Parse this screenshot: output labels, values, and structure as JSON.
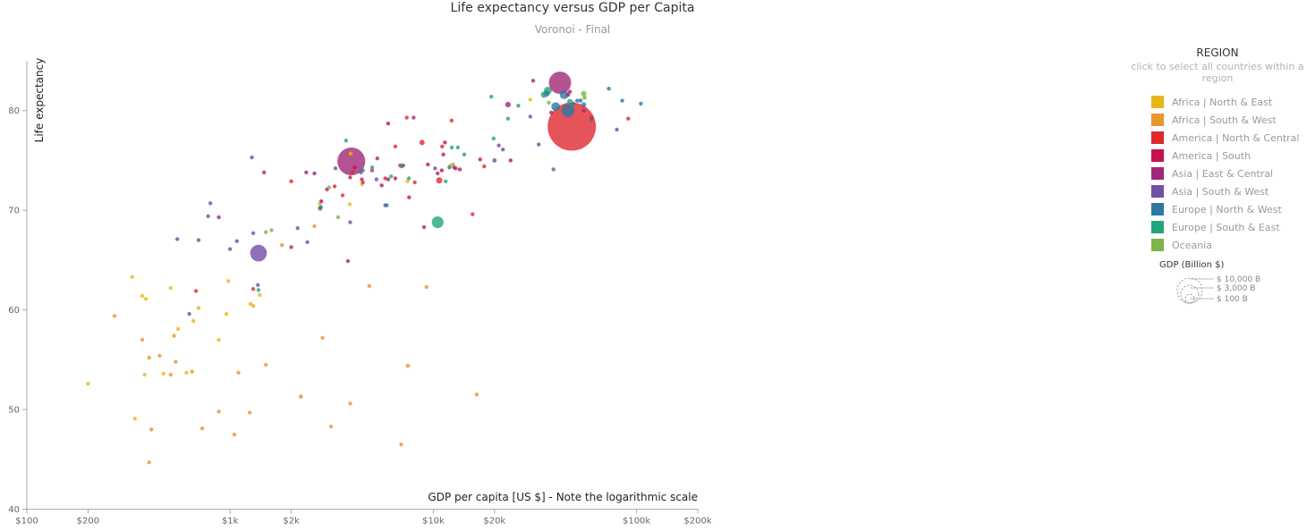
{
  "chart_data": {
    "type": "scatter",
    "title": "Life expectancy versus GDP per Capita",
    "subtitle": "Voronoi - Final",
    "xlabel": "GDP per capita [US $] - Note the logarithmic scale",
    "ylabel": "Life expectancy",
    "x_scale": "log",
    "xlim": [
      100,
      200000
    ],
    "ylim": [
      40,
      85
    ],
    "x_ticks": [
      {
        "value": 100,
        "label": "$100"
      },
      {
        "value": 200,
        "label": "$200"
      },
      {
        "value": 1000,
        "label": "$1k"
      },
      {
        "value": 2000,
        "label": "$2k"
      },
      {
        "value": 10000,
        "label": "$10k"
      },
      {
        "value": 20000,
        "label": "$20k"
      },
      {
        "value": 100000,
        "label": "$100k"
      },
      {
        "value": 200000,
        "label": "$200k"
      }
    ],
    "y_ticks": [
      {
        "value": 40,
        "label": "40"
      },
      {
        "value": 50,
        "label": "50"
      },
      {
        "value": 60,
        "label": "60"
      },
      {
        "value": 70,
        "label": "70"
      },
      {
        "value": 80,
        "label": "80"
      }
    ],
    "grid": false,
    "legend": {
      "title": "REGION",
      "hint": "click to select all countries within a region",
      "position": "right"
    },
    "size_legend": {
      "title": "GDP (Billion $)",
      "entries": [
        {
          "value": 10000,
          "label": "$ 10,000 B"
        },
        {
          "value": 3000,
          "label": "$ 3,000 B"
        },
        {
          "value": 100,
          "label": "$ 100 B"
        }
      ]
    },
    "series": [
      {
        "name": "Africa | North & East",
        "color": "#E8B51B",
        "points": [
          [
            200,
            52.6,
            30
          ],
          [
            330,
            63.3,
            30
          ],
          [
            340,
            49.1,
            30
          ],
          [
            370,
            61.4,
            30
          ],
          [
            380,
            53.5,
            30
          ],
          [
            385,
            61.1,
            30
          ],
          [
            470,
            53.6,
            30
          ],
          [
            510,
            62.2,
            30
          ],
          [
            555,
            58.1,
            30
          ],
          [
            610,
            53.7,
            30
          ],
          [
            660,
            58.9,
            30
          ],
          [
            700,
            60.2,
            30
          ],
          [
            960,
            59.6,
            40
          ],
          [
            980,
            62.9,
            40
          ],
          [
            1260,
            60.6,
            40
          ],
          [
            1400,
            61.5,
            40
          ],
          [
            2760,
            70.6,
            60
          ],
          [
            2780,
            70.1,
            40
          ],
          [
            3880,
            70.6,
            40
          ],
          [
            3920,
            75.7,
            40
          ],
          [
            4460,
            72.6,
            40
          ],
          [
            7460,
            72.9,
            40
          ],
          [
            12130,
            74.5,
            40
          ],
          [
            30000,
            81.1,
            40
          ],
          [
            1300,
            60.4,
            40
          ],
          [
            880,
            57.0,
            30
          ]
        ]
      },
      {
        "name": "Africa | South & West",
        "color": "#E8962E",
        "points": [
          [
            270,
            59.4,
            30
          ],
          [
            370,
            57.0,
            30
          ],
          [
            400,
            55.2,
            30
          ],
          [
            410,
            48.0,
            30
          ],
          [
            400,
            44.7,
            30
          ],
          [
            450,
            55.4,
            30
          ],
          [
            510,
            53.5,
            30
          ],
          [
            530,
            57.4,
            30
          ],
          [
            540,
            54.8,
            30
          ],
          [
            650,
            53.8,
            30
          ],
          [
            730,
            48.1,
            30
          ],
          [
            880,
            49.8,
            30
          ],
          [
            1050,
            47.5,
            30
          ],
          [
            1100,
            53.7,
            30
          ],
          [
            1250,
            49.7,
            30
          ],
          [
            1500,
            54.5,
            30
          ],
          [
            2230,
            51.3,
            120
          ],
          [
            2850,
            57.2,
            30
          ],
          [
            3140,
            48.3,
            30
          ],
          [
            3900,
            50.6,
            60
          ],
          [
            4840,
            62.4,
            30
          ],
          [
            6950,
            46.5,
            30
          ],
          [
            7500,
            54.4,
            120
          ],
          [
            9250,
            62.3,
            30
          ],
          [
            16350,
            51.5,
            30
          ],
          [
            1800,
            66.5,
            30
          ],
          [
            2600,
            68.4,
            30
          ]
        ]
      },
      {
        "name": "America | North & Central",
        "color": "#E0282E",
        "points": [
          [
            680,
            61.9,
            30
          ],
          [
            1300,
            62.1,
            30
          ],
          [
            2000,
            72.9,
            30
          ],
          [
            3270,
            72.4,
            30
          ],
          [
            3580,
            71.5,
            30
          ],
          [
            4000,
            73.8,
            30
          ],
          [
            4500,
            72.8,
            30
          ],
          [
            5000,
            74.0,
            30
          ],
          [
            5800,
            73.2,
            30
          ],
          [
            6500,
            76.4,
            30
          ],
          [
            7400,
            79.3,
            30
          ],
          [
            8100,
            72.8,
            30
          ],
          [
            8800,
            76.8,
            180
          ],
          [
            10700,
            73.0,
            250
          ],
          [
            11050,
            76.4,
            90
          ],
          [
            12300,
            79.0,
            60
          ],
          [
            15600,
            69.6,
            30
          ],
          [
            17800,
            74.4,
            30
          ],
          [
            48000,
            78.4,
            15000
          ],
          [
            60000,
            79.3,
            30
          ],
          [
            91000,
            79.2,
            30
          ]
        ]
      },
      {
        "name": "America | South",
        "color": "#C4124D",
        "points": [
          [
            2810,
            70.9,
            30
          ],
          [
            3000,
            72.1,
            30
          ],
          [
            4100,
            74.3,
            60
          ],
          [
            5570,
            72.5,
            30
          ],
          [
            6000,
            78.7,
            60
          ],
          [
            6500,
            73.2,
            60
          ],
          [
            7100,
            74.5,
            30
          ],
          [
            7600,
            71.3,
            30
          ],
          [
            9400,
            74.6,
            60
          ],
          [
            11000,
            74.0,
            60
          ],
          [
            11400,
            76.8,
            30
          ],
          [
            12660,
            74.3,
            60
          ],
          [
            13500,
            74.1,
            60
          ],
          [
            17000,
            75.1,
            30
          ],
          [
            24000,
            75.0,
            30
          ],
          [
            47000,
            81.9,
            60
          ]
        ]
      },
      {
        "name": "Asia | East & Central",
        "color": "#A02876",
        "points": [
          [
            880,
            69.3,
            30
          ],
          [
            1470,
            73.8,
            30
          ],
          [
            2000,
            66.3,
            30
          ],
          [
            2370,
            73.8,
            30
          ],
          [
            2600,
            73.7,
            30
          ],
          [
            3800,
            64.9,
            30
          ],
          [
            3900,
            73.3,
            30
          ],
          [
            3950,
            74.9,
            5000
          ],
          [
            4450,
            73.1,
            60
          ],
          [
            5300,
            75.2,
            30
          ],
          [
            6000,
            73.1,
            30
          ],
          [
            6870,
            74.5,
            30
          ],
          [
            8000,
            79.3,
            30
          ],
          [
            9000,
            68.3,
            60
          ],
          [
            10500,
            73.7,
            30
          ],
          [
            11200,
            75.6,
            60
          ],
          [
            12900,
            74.2,
            60
          ],
          [
            23300,
            80.6,
            200
          ],
          [
            31000,
            83.0,
            60
          ],
          [
            42000,
            82.8,
            3200
          ],
          [
            46000,
            81.6,
            120
          ],
          [
            38000,
            79.8,
            60
          ],
          [
            55000,
            80.0,
            60
          ]
        ]
      },
      {
        "name": "Asia | South & West",
        "color": "#7150A2",
        "points": [
          [
            550,
            67.1,
            30
          ],
          [
            630,
            59.6,
            30
          ],
          [
            700,
            67.0,
            30
          ],
          [
            780,
            69.4,
            60
          ],
          [
            800,
            70.7,
            30
          ],
          [
            1000,
            66.1,
            60
          ],
          [
            1080,
            66.9,
            30
          ],
          [
            1280,
            75.3,
            60
          ],
          [
            1300,
            67.7,
            30
          ],
          [
            1380,
            65.7,
            1800
          ],
          [
            1370,
            62.5,
            30
          ],
          [
            2150,
            68.2,
            30
          ],
          [
            2400,
            66.8,
            30
          ],
          [
            3300,
            74.2,
            30
          ],
          [
            3900,
            68.8,
            30
          ],
          [
            4400,
            73.8,
            60
          ],
          [
            5250,
            73.1,
            60
          ],
          [
            5800,
            70.5,
            30
          ],
          [
            10200,
            74.2,
            60
          ],
          [
            20000,
            75.0,
            120
          ],
          [
            21000,
            76.5,
            30
          ],
          [
            30000,
            79.4,
            30
          ],
          [
            33000,
            76.6,
            60
          ],
          [
            39000,
            74.1,
            30
          ],
          [
            80000,
            78.1,
            60
          ],
          [
            22000,
            76.1,
            30
          ]
        ]
      },
      {
        "name": "Europe | North & West",
        "color": "#2E77A2",
        "points": [
          [
            4500,
            74.0,
            30
          ],
          [
            5900,
            70.5,
            30
          ],
          [
            12000,
            74.3,
            30
          ],
          [
            36000,
            81.7,
            250
          ],
          [
            40000,
            80.4,
            500
          ],
          [
            44000,
            81.6,
            500
          ],
          [
            46000,
            80.0,
            1100
          ],
          [
            49000,
            80.7,
            60
          ],
          [
            51000,
            81.0,
            60
          ],
          [
            53000,
            81.0,
            120
          ],
          [
            55000,
            80.6,
            150
          ],
          [
            60000,
            79.1,
            60
          ],
          [
            73000,
            82.2,
            60
          ],
          [
            85000,
            81.0,
            60
          ],
          [
            105000,
            80.7,
            60
          ],
          [
            2800,
            70.3,
            30
          ]
        ]
      },
      {
        "name": "Europe | South & East",
        "color": "#23A57B",
        "points": [
          [
            1380,
            62.0,
            30
          ],
          [
            2760,
            70.2,
            40
          ],
          [
            3720,
            77.0,
            30
          ],
          [
            5000,
            74.3,
            30
          ],
          [
            6200,
            73.4,
            30
          ],
          [
            6980,
            74.4,
            30
          ],
          [
            7580,
            73.2,
            30
          ],
          [
            10500,
            68.8,
            900
          ],
          [
            11500,
            72.9,
            30
          ],
          [
            12330,
            76.3,
            60
          ],
          [
            13200,
            76.3,
            30
          ],
          [
            14200,
            75.6,
            30
          ],
          [
            19300,
            81.4,
            30
          ],
          [
            19800,
            77.2,
            60
          ],
          [
            23300,
            79.2,
            60
          ],
          [
            26200,
            80.5,
            60
          ],
          [
            35000,
            81.6,
            250
          ],
          [
            36600,
            82.0,
            400
          ],
          [
            47000,
            80.9,
            200
          ]
        ]
      },
      {
        "name": "Oceania",
        "color": "#7DB548",
        "points": [
          [
            1500,
            67.8,
            30
          ],
          [
            1600,
            68.0,
            30
          ],
          [
            3070,
            72.3,
            30
          ],
          [
            3400,
            69.3,
            30
          ],
          [
            12500,
            74.6,
            30
          ],
          [
            37000,
            80.8,
            60
          ],
          [
            55000,
            81.7,
            200
          ],
          [
            55500,
            81.3,
            120
          ]
        ]
      }
    ]
  }
}
